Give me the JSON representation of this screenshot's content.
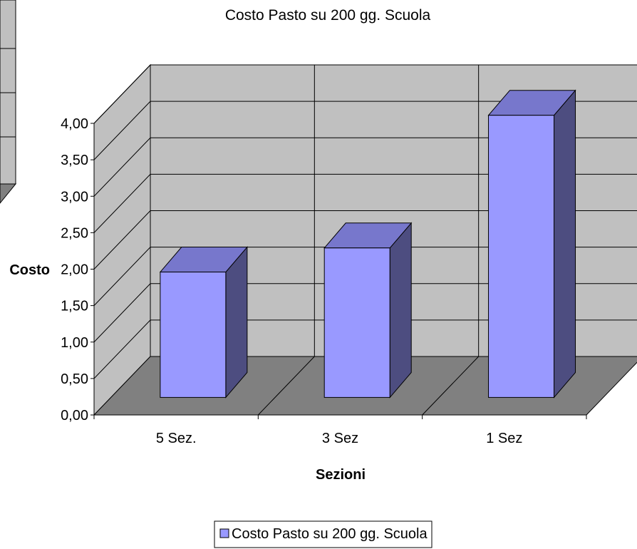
{
  "chart_data": {
    "type": "bar",
    "style": "3d-column",
    "title": "Costo Pasto su 200 gg. Scuola",
    "xlabel": "Sezioni",
    "ylabel": "Costo",
    "categories": [
      "5 Sez.",
      "3 Sez",
      "1 Sez"
    ],
    "series": [
      {
        "name": "Costo Pasto su 200 gg. Scuola",
        "values": [
          1.72,
          2.05,
          3.87
        ]
      }
    ],
    "ylim": [
      0,
      4.0
    ],
    "y_ticks": [
      "0,00",
      "0,50",
      "1,00",
      "1,50",
      "2,00",
      "2,50",
      "3,00",
      "3,50",
      "4,00"
    ],
    "grid": true,
    "legend_position": "bottom-center",
    "colors": {
      "bar_front": "#9999ff",
      "bar_top": "#7777cc",
      "bar_side": "#4d4d80",
      "wall": "#c0c0c0",
      "floor": "#808080"
    }
  }
}
